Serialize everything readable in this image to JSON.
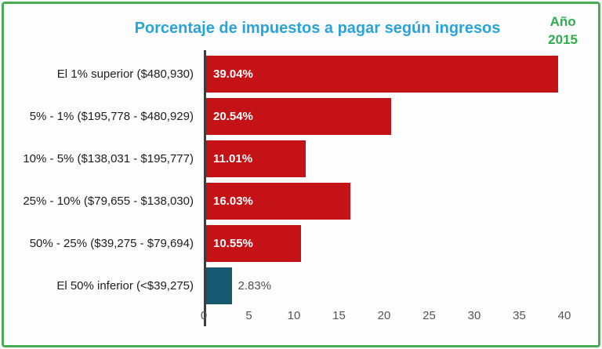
{
  "frame": {
    "background": "#fdfdfd",
    "border_color": "#4aad55"
  },
  "header": {
    "title": "Porcentaje de impuestos a pagar según ingresos",
    "title_color": "#29a4d9",
    "year_line1": "Año",
    "year_line2": "2015",
    "year_color": "#2fad4f"
  },
  "chart_data": {
    "type": "bar",
    "orientation": "horizontal",
    "title": "Porcentaje de impuestos a pagar según ingresos",
    "annotation": "Año 2015",
    "categories": [
      "El 1% superior ($480,930)",
      "5% - 1% ($195,778 - $480,929)",
      "10% - 5% ($138,031 - $195,777)",
      "25% - 10% ($79,655 - $138,030)",
      "50% - 25% ($39,275 - $79,694)",
      "El 50% inferior (<$39,275)"
    ],
    "values": [
      39.04,
      20.54,
      11.01,
      16.03,
      10.55,
      2.83
    ],
    "value_labels": [
      "39.04%",
      "20.54%",
      "11.01%",
      "16.03%",
      "10.55%",
      "2.83%"
    ],
    "bar_colors": [
      "#c41216",
      "#c41216",
      "#c41216",
      "#c41216",
      "#c41216",
      "#16586f"
    ],
    "value_label_inside": [
      true,
      true,
      true,
      true,
      true,
      false
    ],
    "xlabel": "",
    "ylabel": "",
    "xlim": [
      0,
      40
    ],
    "xticks": [
      0,
      5,
      10,
      15,
      20,
      25,
      30,
      35,
      40
    ],
    "grid": false,
    "legend": "none"
  }
}
